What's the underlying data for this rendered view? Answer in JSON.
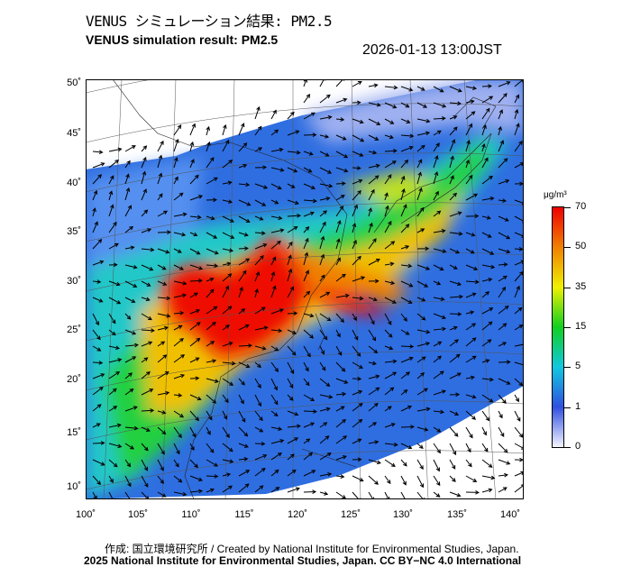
{
  "header": {
    "title_jp": "VENUS シミュレーション結果: PM2.5",
    "title_en": "VENUS simulation result: PM2.5",
    "timestamp": "2026-01-13 13:00JST"
  },
  "map": {
    "lat_labels": [
      "50˚",
      "45˚",
      "40˚",
      "35˚",
      "30˚",
      "25˚",
      "20˚",
      "15˚",
      "10˚"
    ],
    "lon_labels": [
      "100˚",
      "105˚",
      "110˚",
      "115˚",
      "120˚",
      "125˚",
      "130˚",
      "135˚",
      "140˚"
    ],
    "layer": "PM2.5 concentration with wind vectors"
  },
  "colorbar": {
    "unit": "μg/m³",
    "ticks": [
      "70",
      "50",
      "35",
      "15",
      "5",
      "1",
      "0"
    ],
    "colors": [
      "#f4f4ff",
      "#3050e0",
      "#10c8e0",
      "#10d020",
      "#f0f000",
      "#f08000",
      "#f00000"
    ]
  },
  "footer": {
    "credit_line1": "作成: 国立環境研究所 / Created by National Institute for Environmental Studies, Japan.",
    "credit_line2": "2025 National Institute for Environmental Studies, Japan. CC BY−NC 4.0 International"
  }
}
